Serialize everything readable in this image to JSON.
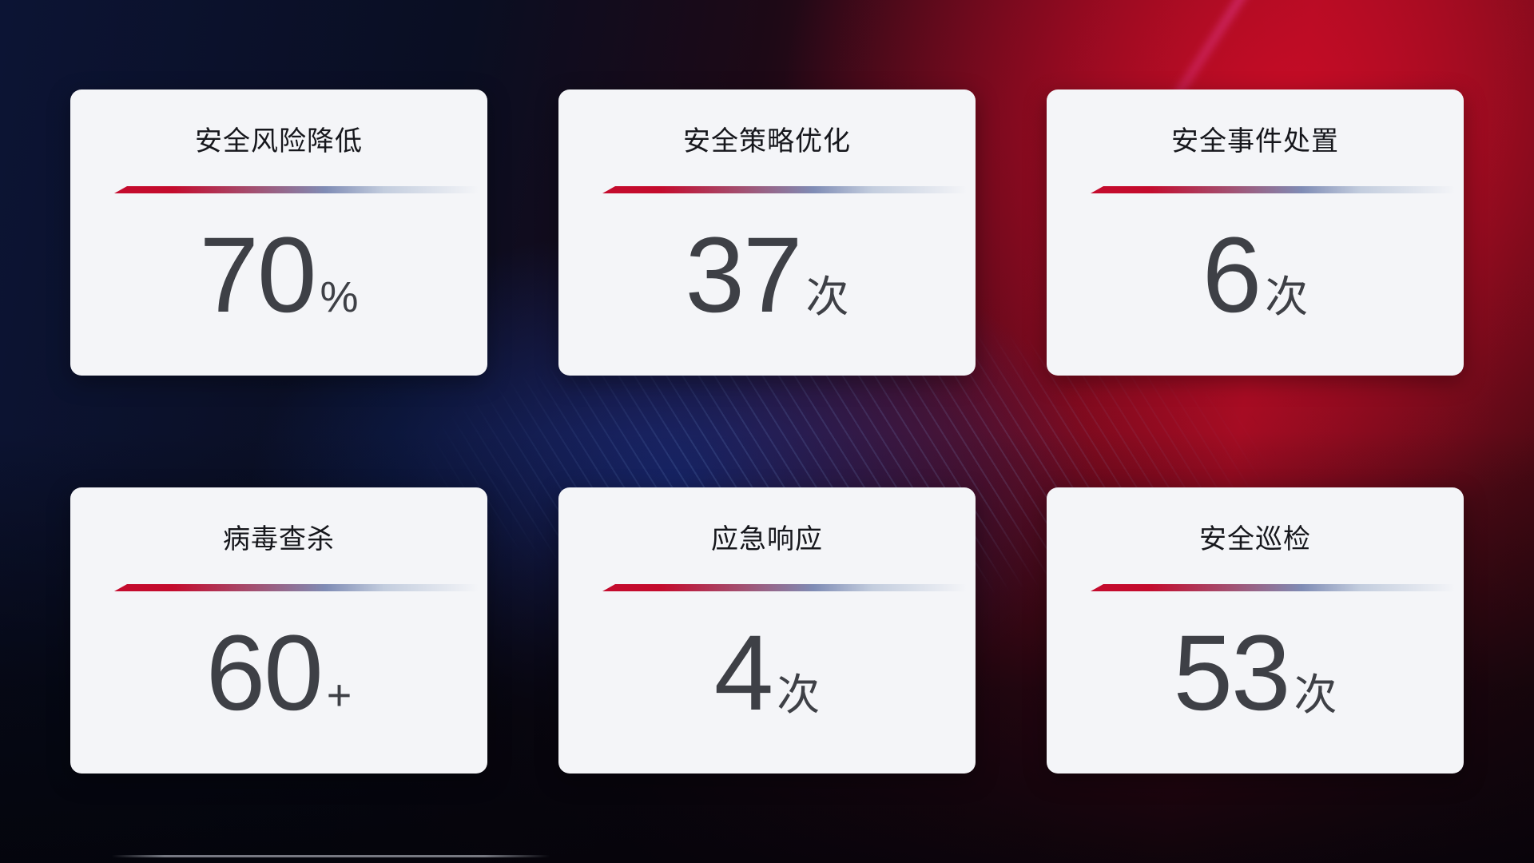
{
  "dashboard": {
    "description": "security operations stat dashboard",
    "cards": [
      {
        "title": "安全风险降低",
        "value": "70",
        "suffix": "%"
      },
      {
        "title": "安全策略优化",
        "value": "37",
        "suffix": "次"
      },
      {
        "title": "安全事件处置",
        "value": "6",
        "suffix": "次"
      },
      {
        "title": "病毒查杀",
        "value": "60",
        "suffix": "+"
      },
      {
        "title": "应急响应",
        "value": "4",
        "suffix": "次"
      },
      {
        "title": "安全巡检",
        "value": "53",
        "suffix": "次"
      }
    ]
  },
  "theme": {
    "card_bg": "#f4f5f8",
    "title_color": "#16171c",
    "value_color": "#3e4046",
    "divider_red": "#c40b2d",
    "divider_mauve": "#a34f70",
    "divider_slate": "#7f8cb5",
    "divider_light": "#c3cdde",
    "bg_navy": "#0c1434",
    "bg_red": "#b00d20",
    "bg_blue_glow": "#1640b9",
    "bg_bottom": "#04040a"
  }
}
